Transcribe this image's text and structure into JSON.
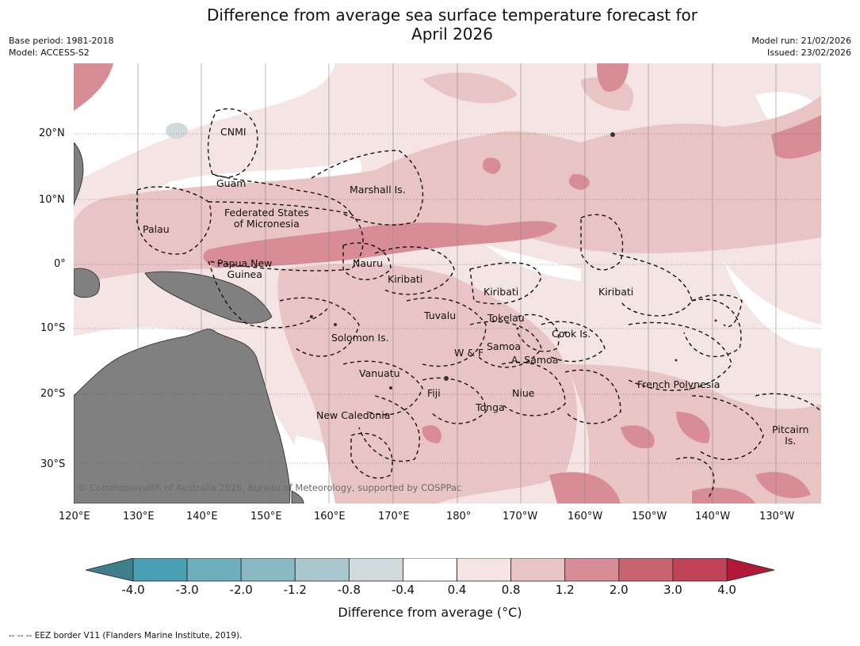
{
  "title_line1": "Difference from average sea surface temperature forecast for",
  "title_line2": "April 2026",
  "meta_left": [
    "Base period: 1981-2018",
    "Model: ACCESS-S2"
  ],
  "meta_right": [
    "Model run: 21/02/2026",
    "Issued: 23/02/2026"
  ],
  "copyright": "© Commonwealth of Australia 2026, Bureau of Meteorology, supported by COSPPac",
  "longitude_labels": [
    "120°E",
    "130°E",
    "140°E",
    "150°E",
    "160°E",
    "170°E",
    "180°",
    "170°W",
    "160°W",
    "150°W",
    "140°W",
    "130°W"
  ],
  "latitude_labels": [
    "20°N",
    "10°N",
    "0°",
    "10°S",
    "20°S",
    "30°S"
  ],
  "regions": [
    "CNMI",
    "Guam",
    "Marshall Is.",
    "Federated States\nof Micronesia",
    "Palau",
    "Papua New\nGuinea",
    "Nauru",
    "Kiribati",
    "Kiribati",
    "Kiribati",
    "Tuvalu",
    "Tokelau",
    "Solomon Is.",
    "Samoa",
    "W & F",
    "A. Samoa",
    "Cook Is.",
    "Vanuatu",
    "Fiji",
    "Niue",
    "Tonga",
    "French Polynesia",
    "New Caledonia",
    "Pitcairn\nIs."
  ],
  "colorbar": {
    "ticks": [
      "-4.0",
      "-3.0",
      "-2.0",
      "-1.2",
      "-0.8",
      "-0.4",
      "0.4",
      "0.8",
      "1.2",
      "2.0",
      "3.0",
      "4.0"
    ],
    "colors": [
      "#4aa0b3",
      "#6eafbd",
      "#8ab9c4",
      "#a9c8cd",
      "#d0d9db",
      "#ffffff",
      "#f4e4e4",
      "#e8c5c4",
      "#d78c96",
      "#c9636f",
      "#c04455"
    ],
    "under_color": "#3e7f8b",
    "over_color": "#b31a3a",
    "label": "Difference from average ($^\\circ$C)"
  },
  "colorbar_label_text": "Difference from average (°C)",
  "footer": "--  --  -- EEZ border V11 (Flanders Marine Institute, 2019)."
}
